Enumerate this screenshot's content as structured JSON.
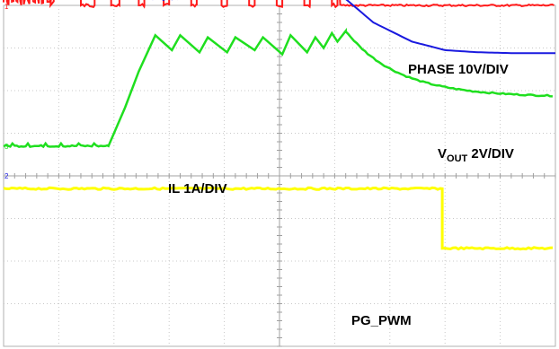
{
  "chart_data": {
    "type": "line",
    "title": "",
    "grid": true,
    "divisions": {
      "x": 10,
      "y": 8
    },
    "series": [
      {
        "name": "PHASE 10V/DIV",
        "label_main": "PHASE 10V/DIV",
        "label_sub": "",
        "label_after": "",
        "channel": "1",
        "color": "#ff1a1a",
        "t": [
          0.0,
          0.85,
          1.9,
          2.6,
          3.2,
          3.8,
          4.1,
          4.6,
          5.0,
          5.6,
          6.2,
          10.0
        ],
        "kind": "pwm-then-low",
        "high_div": 5.25,
        "low_div": 4.0
      },
      {
        "name": "VOUT 2V/DIV",
        "label_main": "V",
        "label_sub": "OUT",
        "label_after": " 2V/DIV",
        "channel": "2",
        "color": "#1a1adf",
        "x": [
          0.0,
          1.9,
          2.2,
          2.6,
          3.0,
          4.0,
          5.0,
          5.7,
          6.2,
          6.7,
          7.4,
          8.0,
          8.6,
          9.2,
          10.0
        ],
        "y": [
          4.55,
          4.55,
          4.4,
          4.2,
          4.15,
          4.2,
          4.3,
          4.4,
          4.15,
          3.6,
          3.15,
          2.95,
          2.9,
          2.88,
          2.88
        ]
      },
      {
        "name": "IL 1A/DIV",
        "label_main": "IL 1A/DIV",
        "label_sub": "",
        "label_after": "",
        "channel": "3",
        "color": "#1fdf1f",
        "x": [
          0.0,
          1.9,
          2.2,
          2.45,
          2.75,
          6.2,
          6.5,
          6.9,
          7.4,
          8.0,
          8.6,
          9.2,
          10.0
        ],
        "y": [
          0.7,
          0.7,
          1.6,
          2.45,
          3.4,
          3.4,
          3.1,
          2.7,
          2.35,
          2.1,
          1.95,
          1.88,
          1.85
        ]
      },
      {
        "name": "PG_PWM",
        "label_main": "PG_PWM",
        "label_sub": "",
        "label_after": "",
        "channel": "4",
        "color": "#ffff00",
        "x": [
          0.0,
          7.95,
          7.95,
          10.0
        ],
        "y": [
          -0.3,
          -0.3,
          -1.7,
          -1.7
        ]
      }
    ]
  }
}
